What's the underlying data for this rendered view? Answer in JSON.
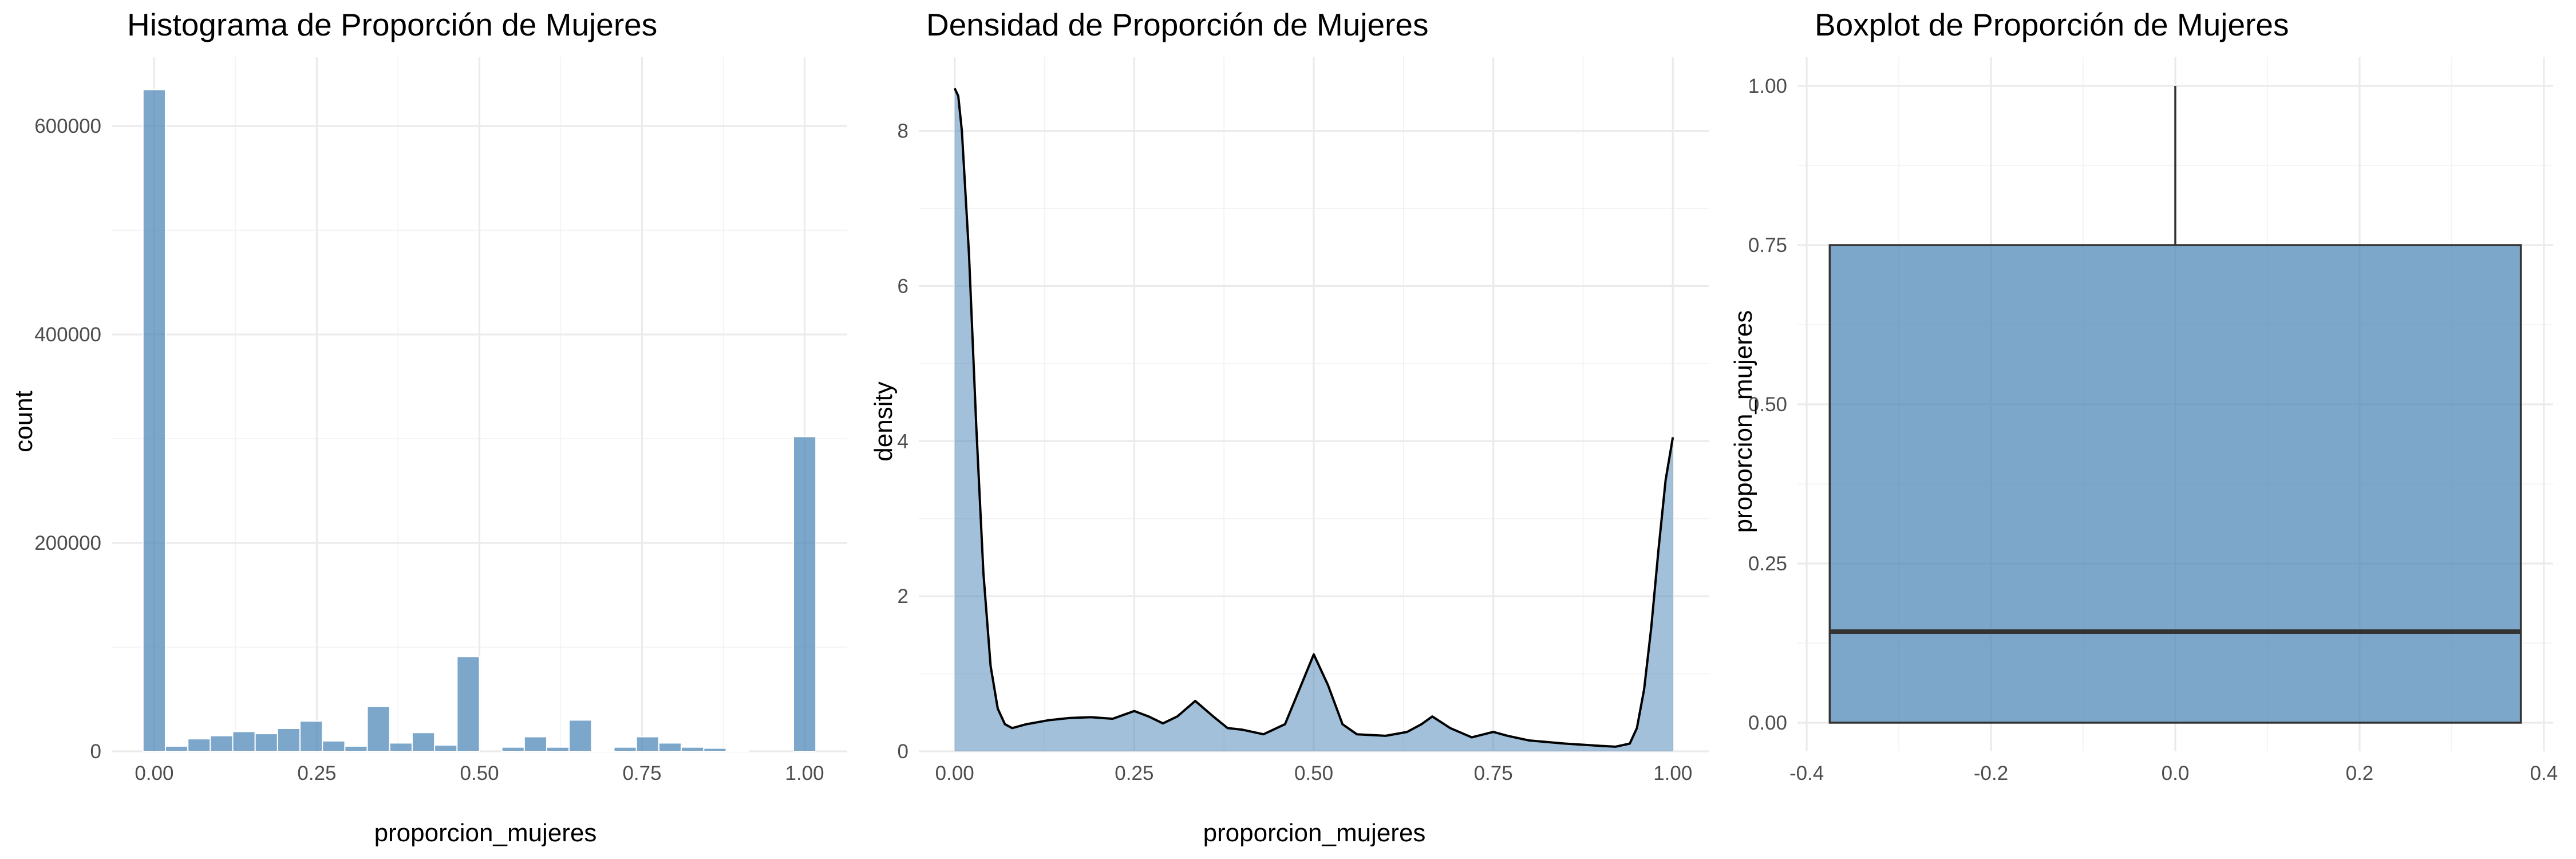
{
  "chart_data": [
    {
      "type": "bar",
      "title": "Histograma de Proporción de Mujeres",
      "xlabel": "proporcion_mujeres",
      "ylabel": "count",
      "xlim": [
        -0.0655,
        1.0655
      ],
      "ylim": [
        0,
        666000
      ],
      "x_ticks": [
        0.0,
        0.25,
        0.5,
        0.75,
        1.0
      ],
      "x_tick_labels": [
        "0.00",
        "0.25",
        "0.50",
        "0.75",
        "1.00"
      ],
      "y_ticks": [
        0,
        200000,
        400000,
        600000
      ],
      "y_tick_labels": [
        "0",
        "200000",
        "400000",
        "600000"
      ],
      "bin_width": 0.0345,
      "grid": true,
      "color": "#4682B4",
      "bins": [
        {
          "x": 0.0,
          "count": 635000
        },
        {
          "x": 0.0345,
          "count": 5000
        },
        {
          "x": 0.069,
          "count": 12000
        },
        {
          "x": 0.1034,
          "count": 15000
        },
        {
          "x": 0.1379,
          "count": 19000
        },
        {
          "x": 0.1724,
          "count": 17000
        },
        {
          "x": 0.2069,
          "count": 22000
        },
        {
          "x": 0.2414,
          "count": 29000
        },
        {
          "x": 0.2759,
          "count": 10000
        },
        {
          "x": 0.3103,
          "count": 5000
        },
        {
          "x": 0.3448,
          "count": 43000
        },
        {
          "x": 0.3793,
          "count": 8000
        },
        {
          "x": 0.4138,
          "count": 18000
        },
        {
          "x": 0.4483,
          "count": 6000
        },
        {
          "x": 0.4828,
          "count": 91000
        },
        {
          "x": 0.5172,
          "count": 0
        },
        {
          "x": 0.5517,
          "count": 4000
        },
        {
          "x": 0.5862,
          "count": 14000
        },
        {
          "x": 0.6207,
          "count": 4000
        },
        {
          "x": 0.6552,
          "count": 30000
        },
        {
          "x": 0.6897,
          "count": 1000
        },
        {
          "x": 0.7241,
          "count": 4000
        },
        {
          "x": 0.7586,
          "count": 14000
        },
        {
          "x": 0.7931,
          "count": 8000
        },
        {
          "x": 0.8276,
          "count": 4000
        },
        {
          "x": 0.8621,
          "count": 3000
        },
        {
          "x": 0.8966,
          "count": 1000
        },
        {
          "x": 0.931,
          "count": 0
        },
        {
          "x": 0.9655,
          "count": 0
        },
        {
          "x": 1.0,
          "count": 302000
        }
      ]
    },
    {
      "type": "area",
      "title": "Densidad de Proporción de Mujeres",
      "xlabel": "proporcion_mujeres",
      "ylabel": "density",
      "xlim": [
        -0.05,
        1.05
      ],
      "ylim": [
        0,
        8.95
      ],
      "x_ticks": [
        0.0,
        0.25,
        0.5,
        0.75,
        1.0
      ],
      "x_tick_labels": [
        "0.00",
        "0.25",
        "0.50",
        "0.75",
        "1.00"
      ],
      "y_ticks": [
        0,
        2,
        4,
        6,
        8
      ],
      "y_tick_labels": [
        "0",
        "2",
        "4",
        "6",
        "8"
      ],
      "grid": true,
      "color": "#4682B4",
      "x": [
        0.0,
        0.005,
        0.01,
        0.02,
        0.03,
        0.04,
        0.05,
        0.06,
        0.07,
        0.08,
        0.1,
        0.13,
        0.16,
        0.19,
        0.22,
        0.25,
        0.27,
        0.29,
        0.31,
        0.335,
        0.36,
        0.38,
        0.4,
        0.43,
        0.46,
        0.48,
        0.5,
        0.52,
        0.54,
        0.56,
        0.6,
        0.63,
        0.65,
        0.665,
        0.69,
        0.72,
        0.75,
        0.77,
        0.8,
        0.85,
        0.9,
        0.92,
        0.94,
        0.95,
        0.96,
        0.97,
        0.98,
        0.99,
        1.0
      ],
      "values": [
        8.55,
        8.45,
        8.0,
        6.4,
        4.2,
        2.3,
        1.1,
        0.55,
        0.35,
        0.3,
        0.35,
        0.4,
        0.43,
        0.44,
        0.42,
        0.52,
        0.45,
        0.36,
        0.45,
        0.65,
        0.45,
        0.3,
        0.28,
        0.22,
        0.35,
        0.8,
        1.25,
        0.85,
        0.35,
        0.22,
        0.2,
        0.25,
        0.35,
        0.45,
        0.3,
        0.18,
        0.25,
        0.2,
        0.14,
        0.1,
        0.07,
        0.06,
        0.1,
        0.3,
        0.8,
        1.6,
        2.6,
        3.5,
        4.05
      ]
    },
    {
      "type": "box",
      "title": "Boxplot de Proporción de Mujeres",
      "xlabel": "",
      "ylabel": "proporcion_mujeres",
      "xlim": [
        -0.41,
        0.41
      ],
      "ylim": [
        -0.045,
        1.045
      ],
      "x_ticks": [
        -0.4,
        -0.2,
        0.0,
        0.2,
        0.4
      ],
      "x_tick_labels": [
        "-0.4",
        "-0.2",
        "0.0",
        "0.2",
        "0.4"
      ],
      "y_ticks": [
        0.0,
        0.25,
        0.5,
        0.75,
        1.0
      ],
      "y_tick_labels": [
        "0.00",
        "0.25",
        "0.50",
        "0.75",
        "1.00"
      ],
      "grid": true,
      "color": "#4682B4",
      "box": {
        "x_min": -0.375,
        "x_max": 0.375,
        "q1": 0.0,
        "median": 0.143,
        "q3": 0.75,
        "whisker_low": 0.0,
        "whisker_high": 1.0
      }
    }
  ]
}
